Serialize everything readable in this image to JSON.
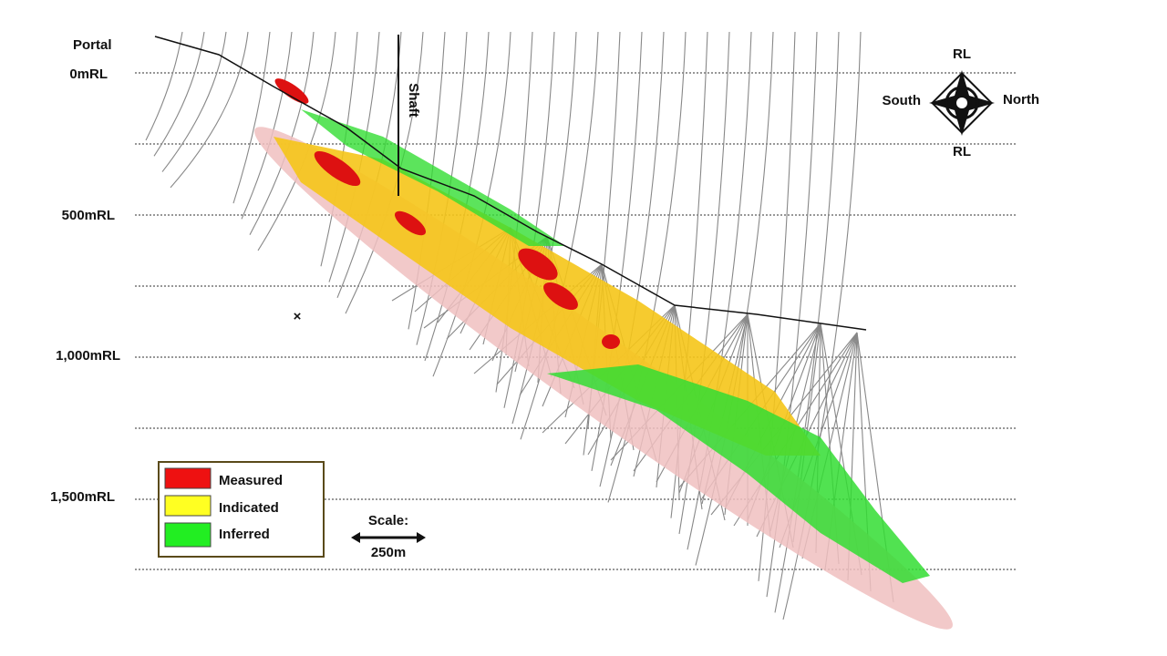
{
  "header": {
    "portal": "Portal",
    "shaft": "Shaft"
  },
  "levels": [
    "0mRL",
    "500mRL",
    "1,000mRL",
    "1,500mRL"
  ],
  "compass": {
    "top": "RL",
    "left": "South",
    "right": "North",
    "bottom": "RL"
  },
  "legend": [
    {
      "label": "Measured",
      "color": "#ee1111"
    },
    {
      "label": "Indicated",
      "color": "#ffff22"
    },
    {
      "label": "Inferred",
      "color": "#22ee22"
    }
  ],
  "scale": {
    "title": "Scale:",
    "length": "250m"
  }
}
